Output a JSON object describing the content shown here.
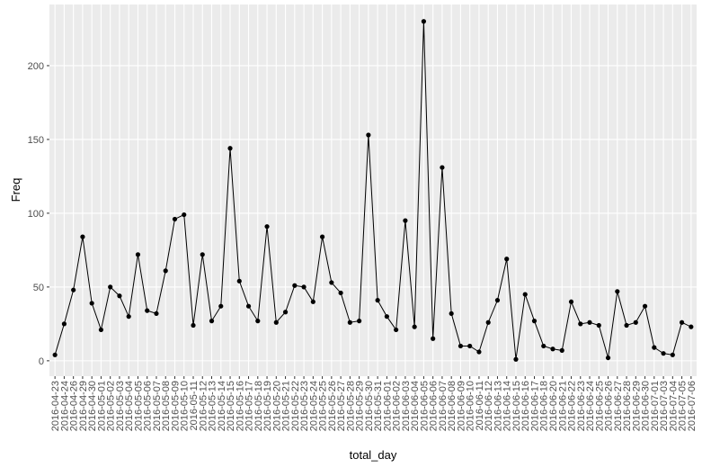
{
  "chart_data": {
    "type": "line",
    "x_label": "total_day",
    "y_label": "Freq",
    "categories": [
      "2016-04-23",
      "2016-04-24",
      "2016-04-26",
      "2016-04-29",
      "2016-04-30",
      "2016-05-01",
      "2016-05-02",
      "2016-05-03",
      "2016-05-04",
      "2016-05-05",
      "2016-05-06",
      "2016-05-07",
      "2016-05-08",
      "2016-05-09",
      "2016-05-10",
      "2016-05-11",
      "2016-05-12",
      "2016-05-13",
      "2016-05-14",
      "2016-05-15",
      "2016-05-16",
      "2016-05-17",
      "2016-05-18",
      "2016-05-19",
      "2016-05-20",
      "2016-05-21",
      "2016-05-22",
      "2016-05-23",
      "2016-05-24",
      "2016-05-25",
      "2016-05-26",
      "2016-05-27",
      "2016-05-28",
      "2016-05-29",
      "2016-05-30",
      "2016-05-31",
      "2016-06-01",
      "2016-06-02",
      "2016-06-03",
      "2016-06-04",
      "2016-06-05",
      "2016-06-06",
      "2016-06-07",
      "2016-06-08",
      "2016-06-09",
      "2016-06-10",
      "2016-06-11",
      "2016-06-12",
      "2016-06-13",
      "2016-06-14",
      "2016-06-15",
      "2016-06-16",
      "2016-06-17",
      "2016-06-18",
      "2016-06-20",
      "2016-06-21",
      "2016-06-22",
      "2016-06-23",
      "2016-06-24",
      "2016-06-25",
      "2016-06-26",
      "2016-06-27",
      "2016-06-28",
      "2016-06-29",
      "2016-06-30",
      "2016-07-01",
      "2016-07-03",
      "2016-07-04",
      "2016-07-05",
      "2016-07-06"
    ],
    "series": [
      {
        "name": "Freq",
        "color": "#000000",
        "values": [
          4,
          25,
          48,
          84,
          39,
          21,
          50,
          44,
          30,
          72,
          34,
          32,
          61,
          96,
          99,
          24,
          72,
          27,
          37,
          144,
          54,
          37,
          27,
          91,
          26,
          33,
          51,
          50,
          40,
          84,
          53,
          46,
          26,
          27,
          153,
          41,
          30,
          21,
          95,
          23,
          230,
          15,
          131,
          32,
          10,
          10,
          6,
          26,
          41,
          69,
          1,
          45,
          27,
          10,
          8,
          7,
          40,
          25,
          26,
          24,
          2,
          47,
          24,
          26,
          37,
          9,
          5,
          4,
          26,
          23
        ]
      }
    ],
    "ylim": [
      -10.45,
      241.45
    ],
    "yticks": [
      0,
      50,
      100,
      150,
      200
    ],
    "grid": true
  }
}
